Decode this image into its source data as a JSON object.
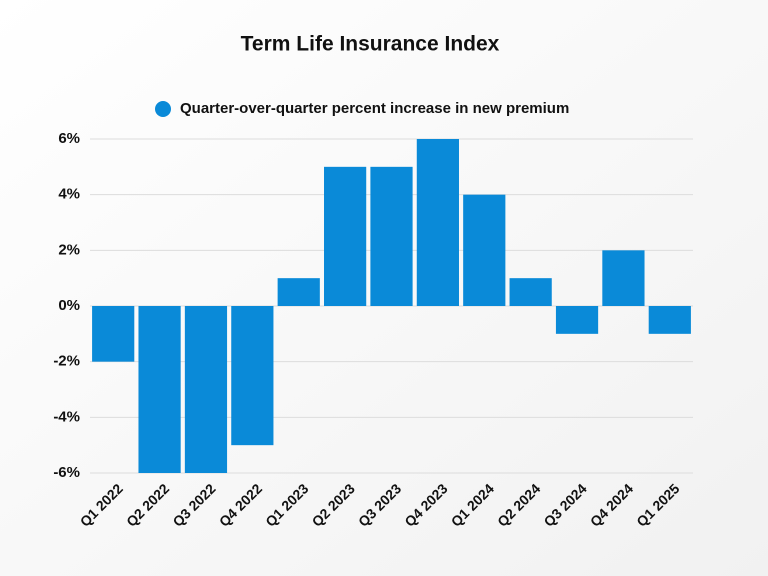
{
  "chart_data": {
    "type": "bar",
    "title": "Term Life Insurance Index",
    "categories": [
      "Q1 2022",
      "Q2 2022",
      "Q3 2022",
      "Q4 2022",
      "Q1 2023",
      "Q2 2023",
      "Q3 2023",
      "Q4 2023",
      "Q1 2024",
      "Q2 2024",
      "Q3 2024",
      "Q4 2024",
      "Q1 2025"
    ],
    "series": [
      {
        "name": "Quarter-over-quarter percent increase in new premium",
        "color": "#0a8ad8",
        "values": [
          -2,
          -6,
          -6,
          -5,
          1,
          5,
          5,
          6,
          4,
          1,
          -1,
          2,
          -1
        ]
      }
    ],
    "ylim": [
      -6,
      6
    ],
    "yticks": [
      {
        "value": -6,
        "label": "-6%"
      },
      {
        "value": -4,
        "label": "-4%"
      },
      {
        "value": -2,
        "label": "-2%"
      },
      {
        "value": 0,
        "label": "0%"
      },
      {
        "value": 2,
        "label": "2%"
      },
      {
        "value": 4,
        "label": "4%"
      },
      {
        "value": 6,
        "label": "6%"
      }
    ],
    "grid": true,
    "legend": "top"
  }
}
